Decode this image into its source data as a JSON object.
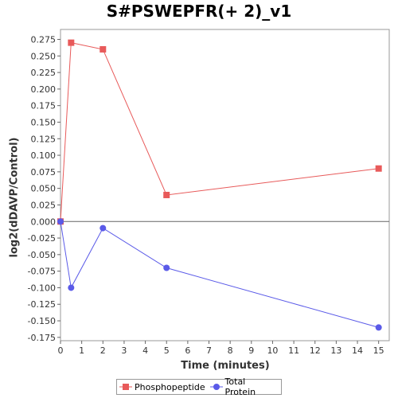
{
  "chart_data": {
    "type": "line",
    "title": "S#PSWEPFR(+ 2)_v1",
    "xlabel": "Time (minutes)",
    "ylabel": "log2(dDAVP/Control)",
    "xlim": [
      0,
      15.5
    ],
    "ylim": [
      -0.18,
      0.29
    ],
    "x_ticks": [
      0,
      1,
      2,
      3,
      4,
      5,
      6,
      7,
      8,
      9,
      10,
      11,
      12,
      13,
      14,
      15
    ],
    "y_ticks": [
      -0.175,
      -0.15,
      -0.125,
      -0.1,
      -0.075,
      -0.05,
      -0.025,
      0.0,
      0.025,
      0.05,
      0.075,
      0.1,
      0.125,
      0.15,
      0.175,
      0.2,
      0.225,
      0.25,
      0.275
    ],
    "y_tick_labels": [
      "-0.175",
      "-0.150",
      "-0.125",
      "-0.100",
      "-0.075",
      "-0.050",
      "-0.025",
      "0.000",
      "0.025",
      "0.050",
      "0.075",
      "0.100",
      "0.125",
      "0.150",
      "0.175",
      "0.200",
      "0.225",
      "0.250",
      "0.275"
    ],
    "series": [
      {
        "name": "Phosphopeptide",
        "color": "#e85a5a",
        "marker": "square",
        "x": [
          0,
          0.5,
          2,
          5,
          15
        ],
        "y": [
          0.0,
          0.27,
          0.26,
          0.04,
          0.08
        ]
      },
      {
        "name": "Total Protein",
        "color": "#5a5ae8",
        "marker": "circle",
        "x": [
          0,
          0.5,
          2,
          5,
          15
        ],
        "y": [
          0.0,
          -0.1,
          -0.01,
          -0.07,
          -0.16
        ]
      }
    ],
    "grid": false,
    "legend_position": "bottom-center"
  }
}
